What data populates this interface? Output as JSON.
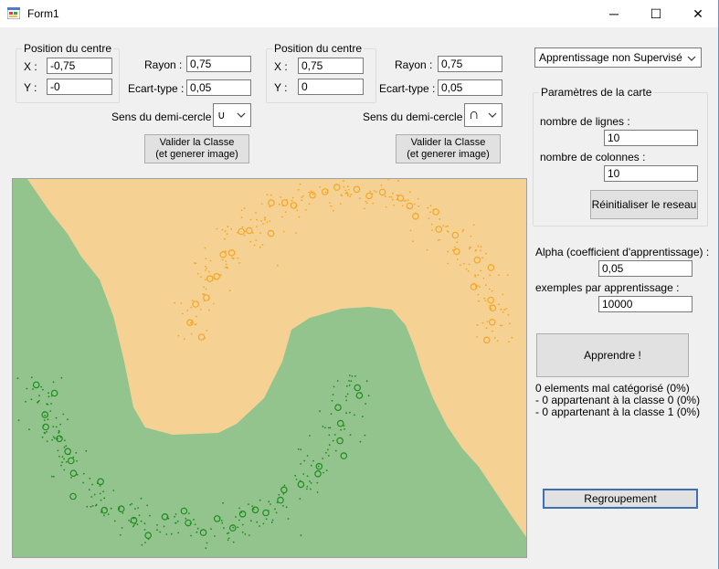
{
  "window": {
    "title": "Form1",
    "minimize_glyph": "─",
    "maximize_glyph": "☐",
    "close_glyph": "✕"
  },
  "class0": {
    "group_title": "Position du centre",
    "x_label": "X :",
    "x_value": "-0,75",
    "y_label": "Y :",
    "y_value": "-0",
    "rayon_label": "Rayon :",
    "rayon_value": "0,75",
    "ecart_label": "Ecart-type :",
    "ecart_value": "0,05",
    "sens_label": "Sens du demi-cercle :",
    "sens_value": "∪",
    "validate_line1": "Valider la Classe",
    "validate_line2": "(et generer image)"
  },
  "class1": {
    "group_title": "Position du centre",
    "x_label": "X :",
    "x_value": "0,75",
    "y_label": "Y :",
    "y_value": "0",
    "rayon_label": "Rayon :",
    "rayon_value": "0,75",
    "ecart_label": "Ecart-type :",
    "ecart_value": "0,05",
    "sens_label": "Sens du demi-cercle :",
    "sens_value": "∩",
    "validate_line1": "Valider la Classe",
    "validate_line2": "(et generer image)"
  },
  "right": {
    "mode_value": "Apprentissage non Supervisé",
    "card_group_title": "Paramètres de la carte",
    "rows_label": "nombre de lignes :",
    "rows_value": "10",
    "cols_label": "nombre de colonnes :",
    "cols_value": "10",
    "reset_label": "Réinitialiser le reseau",
    "alpha_label": "Alpha (coefficient d'apprentissage) :",
    "alpha_value": "0,05",
    "examples_label": "exemples par apprentissage :",
    "examples_value": "10000",
    "learn_label": "Apprendre !",
    "status_line1": "0 elements mal catégorisé (0%)",
    "status_line2": "- 0 appartenant à la classe 0 (0%)",
    "status_line3": "- 0 appartenant à la classe 1 (0%)",
    "group_label": "Regroupement"
  },
  "colors": {
    "region_class0": "#93c48e",
    "region_class1": "#f5d294",
    "points_class0": "#1e8c1e",
    "points_class1": "#f5a623"
  }
}
